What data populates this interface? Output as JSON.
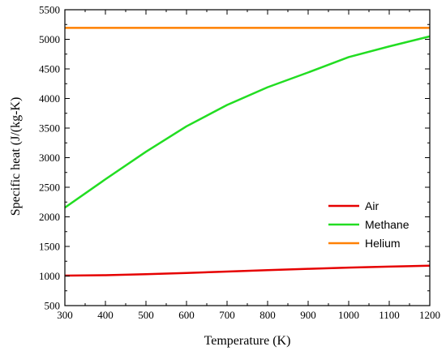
{
  "chart_data": {
    "type": "line",
    "xlabel": "Temperature (K)",
    "ylabel": "Specific heat (J/(kg-K)",
    "xlim": [
      300,
      1200
    ],
    "ylim": [
      500,
      5500
    ],
    "xticks": [
      300,
      400,
      500,
      600,
      700,
      800,
      900,
      1000,
      1100,
      1200
    ],
    "yticks": [
      500,
      1000,
      1500,
      2000,
      2500,
      3000,
      3500,
      4000,
      4500,
      5000,
      5500
    ],
    "grid": false,
    "legend_position": "center-right",
    "series": [
      {
        "name": "Air",
        "color": "#e60000",
        "x": [
          300,
          400,
          500,
          600,
          700,
          800,
          900,
          1000,
          1100,
          1200
        ],
        "y": [
          1007,
          1014,
          1030,
          1051,
          1075,
          1099,
          1121,
          1142,
          1159,
          1174
        ]
      },
      {
        "name": "Methane",
        "color": "#22dd22",
        "x": [
          300,
          400,
          500,
          600,
          700,
          800,
          900,
          1000,
          1100,
          1200
        ],
        "y": [
          2156,
          2635,
          3100,
          3530,
          3890,
          4190,
          4440,
          4700,
          4880,
          5050
        ]
      },
      {
        "name": "Helium",
        "color": "#ff8000",
        "x": [
          300,
          1200
        ],
        "y": [
          5193,
          5193
        ]
      }
    ]
  }
}
